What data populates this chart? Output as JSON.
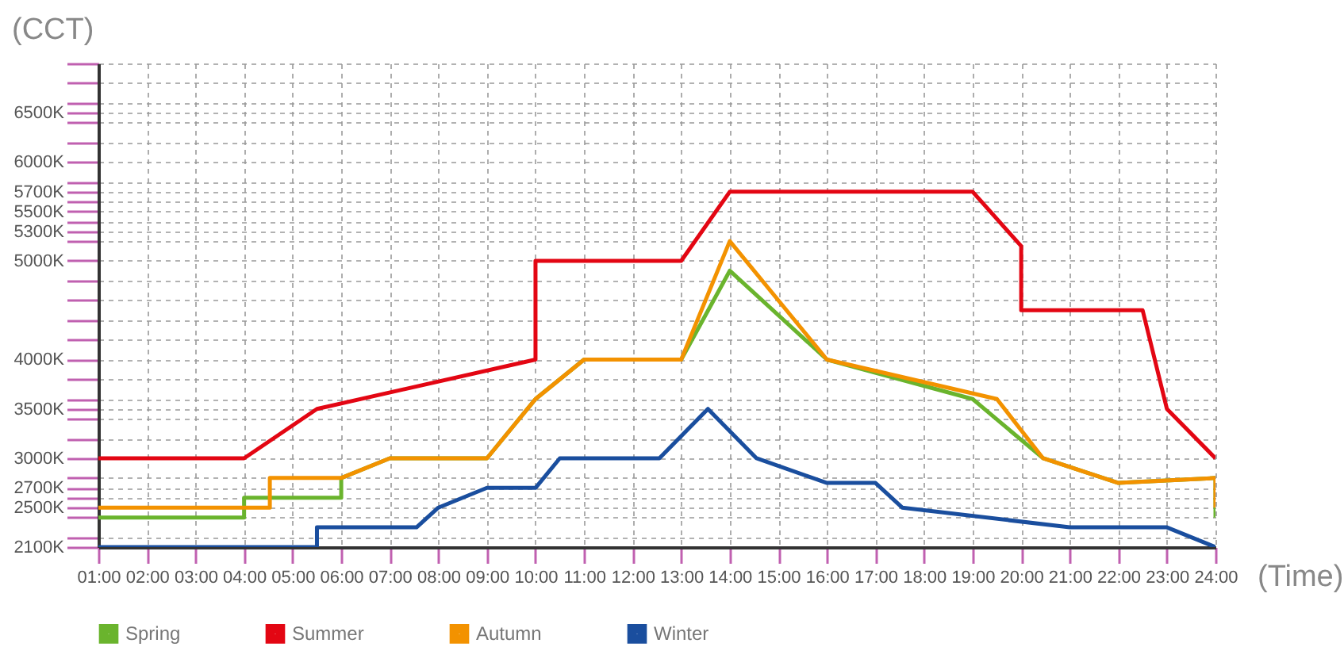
{
  "chart_data": {
    "type": "line",
    "xlabel": "(Time)",
    "ylabel": "(CCT)",
    "xlim": [
      1,
      24
    ],
    "ylim": [
      2100,
      7000
    ],
    "xticks": [
      {
        "value": 1,
        "label": "01:00"
      },
      {
        "value": 2,
        "label": "02:00"
      },
      {
        "value": 3,
        "label": "03:00"
      },
      {
        "value": 4,
        "label": "04:00"
      },
      {
        "value": 5,
        "label": "05:00"
      },
      {
        "value": 6,
        "label": "06:00"
      },
      {
        "value": 7,
        "label": "07:00"
      },
      {
        "value": 8,
        "label": "08:00"
      },
      {
        "value": 9,
        "label": "09:00"
      },
      {
        "value": 10,
        "label": "10:00"
      },
      {
        "value": 11,
        "label": "11:00"
      },
      {
        "value": 12,
        "label": "12:00"
      },
      {
        "value": 13,
        "label": "13:00"
      },
      {
        "value": 14,
        "label": "14:00"
      },
      {
        "value": 15,
        "label": "15:00"
      },
      {
        "value": 16,
        "label": "16:00"
      },
      {
        "value": 17,
        "label": "17:00"
      },
      {
        "value": 18,
        "label": "18:00"
      },
      {
        "value": 19,
        "label": "19:00"
      },
      {
        "value": 20,
        "label": "20:00"
      },
      {
        "value": 21,
        "label": "21:00"
      },
      {
        "value": 22,
        "label": "22:00"
      },
      {
        "value": 23,
        "label": "23:00"
      },
      {
        "value": 24,
        "label": "24:00"
      }
    ],
    "yticks": [
      {
        "value": 2100,
        "label": "2100K"
      },
      {
        "value": 2200,
        "label": null
      },
      {
        "value": 2400,
        "label": null
      },
      {
        "value": 2500,
        "label": "2500K"
      },
      {
        "value": 2600,
        "label": null
      },
      {
        "value": 2700,
        "label": "2700K"
      },
      {
        "value": 2800,
        "label": null
      },
      {
        "value": 3000,
        "label": "3000K"
      },
      {
        "value": 3200,
        "label": null
      },
      {
        "value": 3400,
        "label": null
      },
      {
        "value": 3500,
        "label": "3500K"
      },
      {
        "value": 3600,
        "label": null
      },
      {
        "value": 3800,
        "label": null
      },
      {
        "value": 4000,
        "label": "4000K"
      },
      {
        "value": 4200,
        "label": null
      },
      {
        "value": 4400,
        "label": null
      },
      {
        "value": 4600,
        "label": null
      },
      {
        "value": 4800,
        "label": null
      },
      {
        "value": 5000,
        "label": "5000K"
      },
      {
        "value": 5200,
        "label": null
      },
      {
        "value": 5300,
        "label": "5300K"
      },
      {
        "value": 5400,
        "label": null
      },
      {
        "value": 5500,
        "label": "5500K"
      },
      {
        "value": 5600,
        "label": null
      },
      {
        "value": 5700,
        "label": "5700K"
      },
      {
        "value": 5800,
        "label": null
      },
      {
        "value": 6000,
        "label": "6000K"
      },
      {
        "value": 6200,
        "label": null
      },
      {
        "value": 6400,
        "label": null
      },
      {
        "value": 6500,
        "label": "6500K"
      },
      {
        "value": 6600,
        "label": null
      },
      {
        "value": 6800,
        "label": null
      },
      {
        "value": 7000,
        "label": null
      }
    ],
    "grid": true,
    "legend": "bottom left",
    "line_style": "solid",
    "series": [
      {
        "name": "Spring",
        "color": "#6ab42d",
        "x": [
          1,
          4,
          4,
          6,
          6,
          7,
          9,
          10,
          11,
          13,
          14,
          16,
          19,
          20.45,
          22,
          24,
          24
        ],
        "values": [
          2400,
          2400,
          2600,
          2600,
          2800,
          3000,
          3000,
          3600,
          4000,
          4000,
          4900,
          4000,
          3600,
          3000,
          2750,
          2800,
          2400
        ]
      },
      {
        "name": "Summer",
        "color": "#e30613",
        "x": [
          1,
          4,
          5.5,
          10,
          10,
          13,
          14,
          19,
          20,
          20,
          22.5,
          23,
          24
        ],
        "values": [
          3000,
          3000,
          3500,
          4000,
          5000,
          5000,
          5700,
          5700,
          5150,
          4500,
          4500,
          3500,
          3000
        ]
      },
      {
        "name": "Autumn",
        "color": "#f39200",
        "x": [
          1,
          4.53,
          4.53,
          6,
          7,
          9,
          10,
          11,
          13,
          14,
          16,
          19.5,
          20.45,
          22,
          24,
          24
        ],
        "values": [
          2500,
          2500,
          2800,
          2800,
          3000,
          3000,
          3600,
          4000,
          4000,
          5200,
          4000,
          3600,
          3000,
          2750,
          2800,
          2500
        ]
      },
      {
        "name": "Winter",
        "color": "#1a4e9e",
        "x": [
          1,
          5.5,
          5.5,
          7.55,
          8,
          9,
          10,
          10.5,
          12.55,
          13.55,
          14.55,
          16,
          17,
          17.55,
          21,
          23,
          24
        ],
        "values": [
          2100,
          2100,
          2300,
          2300,
          2500,
          2700,
          2700,
          3000,
          3000,
          3500,
          3000,
          2750,
          2750,
          2500,
          2300,
          2300,
          2100
        ]
      }
    ]
  }
}
